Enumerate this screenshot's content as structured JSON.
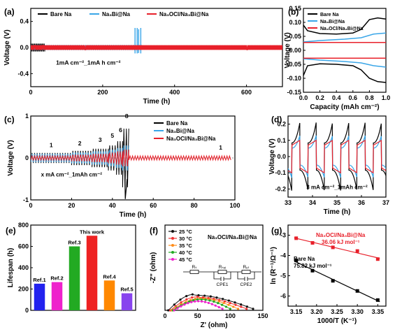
{
  "chart_data": [
    {
      "panel": "(a)",
      "type": "line",
      "xlabel": "Time (h)",
      "ylabel": "Voltage (V)",
      "xlim": [
        0,
        700
      ],
      "ylim": [
        -0.6,
        0.6
      ],
      "xticks": [
        0,
        200,
        400,
        600
      ],
      "yticks": [
        0.4,
        0.0,
        -0.4
      ],
      "annotation": "1mA cm⁻²_1mA h cm⁻²",
      "series": [
        {
          "name": "Bare Na",
          "color": "#000000",
          "t_end": 40,
          "amplitude": 0.06
        },
        {
          "name": "Na₃Bi@Na",
          "color": "#3aa6e8",
          "t_end": 310,
          "amplitude": 0.04,
          "spikes": [
            [
              290,
              0.3
            ],
            [
              296,
              0.3
            ],
            [
              300,
              0.28
            ],
            [
              306,
              0.3
            ]
          ]
        },
        {
          "name": "Na₃OCl/Na₃Bi@Na",
          "color": "#e8202a",
          "t_end": 700,
          "amplitude": 0.035
        }
      ]
    },
    {
      "panel": "(b)",
      "type": "line",
      "xlabel": "Capacity (mAh cm⁻²)",
      "ylabel": "Voltage (V)",
      "xlim": [
        0,
        1.0
      ],
      "ylim": [
        -0.15,
        0.15
      ],
      "xticks": [
        0.0,
        0.2,
        0.4,
        0.6,
        0.8,
        1.0
      ],
      "yticks": [
        0.15,
        0.1,
        0.05,
        0.0,
        -0.05,
        -0.1,
        -0.15
      ],
      "series": [
        {
          "name": "Bare Na",
          "color": "#000000",
          "charge": [
            [
              0,
              0.09
            ],
            [
              0.05,
              0.07
            ],
            [
              0.2,
              0.06
            ],
            [
              0.4,
              0.058
            ],
            [
              0.6,
              0.062
            ],
            [
              0.7,
              0.075
            ],
            [
              0.8,
              0.11
            ],
            [
              0.9,
              0.116
            ],
            [
              1.0,
              0.112
            ]
          ],
          "discharge": [
            [
              0,
              -0.09
            ],
            [
              0.05,
              -0.055
            ],
            [
              0.2,
              -0.048
            ],
            [
              0.4,
              -0.05
            ],
            [
              0.6,
              -0.055
            ],
            [
              0.7,
              -0.07
            ],
            [
              0.8,
              -0.1
            ],
            [
              0.9,
              -0.112
            ],
            [
              1.0,
              -0.115
            ]
          ]
        },
        {
          "name": "Na₃Bi@Na",
          "color": "#3aa6e8",
          "charge": [
            [
              0,
              0.03
            ],
            [
              0.2,
              0.035
            ],
            [
              0.5,
              0.04
            ],
            [
              0.7,
              0.045
            ],
            [
              0.85,
              0.058
            ],
            [
              1.0,
              0.062
            ]
          ],
          "discharge": [
            [
              0,
              -0.03
            ],
            [
              0.2,
              -0.035
            ],
            [
              0.5,
              -0.04
            ],
            [
              0.7,
              -0.045
            ],
            [
              0.85,
              -0.055
            ],
            [
              1.0,
              -0.06
            ]
          ]
        },
        {
          "name": "Na₃OCl/Na₃Bi@Na",
          "color": "#e8202a",
          "charge": [
            [
              0,
              0.028
            ],
            [
              1.0,
              0.028
            ]
          ],
          "discharge": [
            [
              0,
              -0.028
            ],
            [
              1.0,
              -0.028
            ]
          ]
        }
      ]
    },
    {
      "panel": "(c)",
      "type": "line",
      "xlabel": "Time (h)",
      "ylabel": "Voltage (V)",
      "xlim": [
        0,
        100
      ],
      "ylim": [
        -1,
        1
      ],
      "xticks": [
        0,
        20,
        40,
        60,
        80,
        100
      ],
      "yticks": [
        1,
        0,
        -1
      ],
      "annotation": "x mA cm⁻²_1mAh cm⁻²",
      "rate_labels": [
        {
          "text": "1",
          "x": 10,
          "y": 0.26
        },
        {
          "text": "2",
          "x": 24,
          "y": 0.3
        },
        {
          "text": "3",
          "x": 34,
          "y": 0.38
        },
        {
          "text": "5",
          "x": 40,
          "y": 0.48
        },
        {
          "text": "6",
          "x": 44,
          "y": 0.62
        },
        {
          "text": "8",
          "x": 47,
          "y": 0.95
        },
        {
          "text": "1",
          "x": 93,
          "y": 0.2
        }
      ],
      "series": [
        {
          "name": "Bare Na",
          "color": "#000000",
          "steps": [
            [
              0,
              20,
              0.12
            ],
            [
              20,
              30,
              0.17
            ],
            [
              30,
              38,
              0.22
            ],
            [
              38,
              42,
              0.3
            ],
            [
              42,
              45,
              0.4
            ],
            [
              45,
              48,
              0.7
            ]
          ]
        },
        {
          "name": "Na₃Bi@Na",
          "color": "#3aa6e8",
          "steps": [
            [
              0,
              20,
              0.1
            ],
            [
              20,
              30,
              0.13
            ],
            [
              30,
              38,
              0.16
            ],
            [
              38,
              42,
              0.2
            ],
            [
              42,
              45,
              0.24
            ],
            [
              45,
              48,
              0.3
            ]
          ]
        },
        {
          "name": "Na₃OCl/Na₃Bi@Na",
          "color": "#e8202a",
          "steps": [
            [
              0,
              20,
              0.05
            ],
            [
              20,
              30,
              0.08
            ],
            [
              30,
              38,
              0.1
            ],
            [
              38,
              42,
              0.13
            ],
            [
              42,
              45,
              0.16
            ],
            [
              45,
              48,
              0.2
            ],
            [
              48,
              98,
              0.05
            ]
          ]
        }
      ]
    },
    {
      "panel": "(d)",
      "type": "line",
      "xlabel": "Time (h)",
      "ylabel": "Voltage (V)",
      "xlim": [
        33,
        37
      ],
      "ylim": [
        -0.25,
        0.25
      ],
      "xticks": [
        33,
        34,
        35,
        36,
        37
      ],
      "yticks": [
        0.2,
        0.1,
        0.0,
        -0.1,
        -0.2
      ],
      "annotation": "3 mA cm⁻²_1mAh cm⁻²",
      "period_h": 0.667,
      "series": [
        {
          "name": "Bare Na",
          "color": "#000000",
          "amplitude": 0.21
        },
        {
          "name": "Na₃Bi@Na",
          "color": "#3aa6e8",
          "amplitude": 0.13
        },
        {
          "name": "Na₃OCl/Na₃Bi@Na",
          "color": "#e8202a",
          "amplitude": 0.1
        }
      ]
    },
    {
      "panel": "(e)",
      "type": "bar",
      "ylabel": "Lifespan (h)",
      "ylim": [
        0,
        800
      ],
      "yticks": [
        0,
        200,
        400,
        600,
        800
      ],
      "categories": [
        "Ref.1",
        "Ref.2",
        "Ref.3",
        "This work",
        "Ref.4",
        "Ref.5"
      ],
      "values": [
        250,
        265,
        600,
        700,
        280,
        160
      ],
      "colors": [
        "#2222ee",
        "#ee22cc",
        "#22aa22",
        "#ee2222",
        "#ff8800",
        "#8844ee"
      ]
    },
    {
      "panel": "(f)",
      "type": "line",
      "xlabel": "Z' (ohm)",
      "ylabel": "-Z\" (ohm)",
      "xlim": [
        0,
        150
      ],
      "ylim": [
        0,
        170
      ],
      "xticks": [
        0,
        50,
        100,
        150
      ],
      "yticks": [],
      "title": "Na₃OCl/Na₃Bi@Na",
      "circuit_labels": [
        "Rₛ",
        "Rₛₑᵢ",
        "Rₑₜ",
        "CPE1",
        "CPE2"
      ],
      "series": [
        {
          "name": "25 °C",
          "color": "#111111",
          "x_start": 5,
          "x_end": 135,
          "peak_x": 45,
          "height": 32
        },
        {
          "name": "30 °C",
          "color": "#ee3333",
          "x_start": 8,
          "x_end": 125,
          "peak_x": 50,
          "height": 27
        },
        {
          "name": "35 °C",
          "color": "#ff8c1a",
          "x_start": 10,
          "x_end": 112,
          "peak_x": 55,
          "height": 24
        },
        {
          "name": "40 °C",
          "color": "#22aa22",
          "x_start": 12,
          "x_end": 100,
          "peak_x": 55,
          "height": 22
        },
        {
          "name": "45 °C",
          "color": "#ee22cc",
          "x_start": 14,
          "x_end": 88,
          "peak_x": 50,
          "height": 18
        }
      ]
    },
    {
      "panel": "(g)",
      "type": "scatter",
      "xlabel": "1000/T (K⁻¹)",
      "ylabel": "ln (R⁻¹/Ω⁻¹)",
      "xlim": [
        3.13,
        3.37
      ],
      "ylim": [
        -6.5,
        -2.5
      ],
      "xticks": [
        3.15,
        3.2,
        3.25,
        3.3,
        3.35
      ],
      "yticks": [
        -3,
        -4,
        -5,
        -6
      ],
      "series": [
        {
          "name": "Na₃OCl/Na₃Bi@Na",
          "color": "#e8202a",
          "label": "36.06 kJ mol⁻¹",
          "x": [
            3.15,
            3.19,
            3.24,
            3.3,
            3.35
          ],
          "y": [
            -3.15,
            -3.38,
            -3.6,
            -3.78,
            -4.18
          ]
        },
        {
          "name": "Bare Na",
          "color": "#000000",
          "label": "75.82 kJ mol⁻¹",
          "x": [
            3.15,
            3.19,
            3.24,
            3.3,
            3.35
          ],
          "y": [
            -4.25,
            -4.75,
            -5.25,
            -5.75,
            -6.2
          ]
        }
      ]
    }
  ]
}
